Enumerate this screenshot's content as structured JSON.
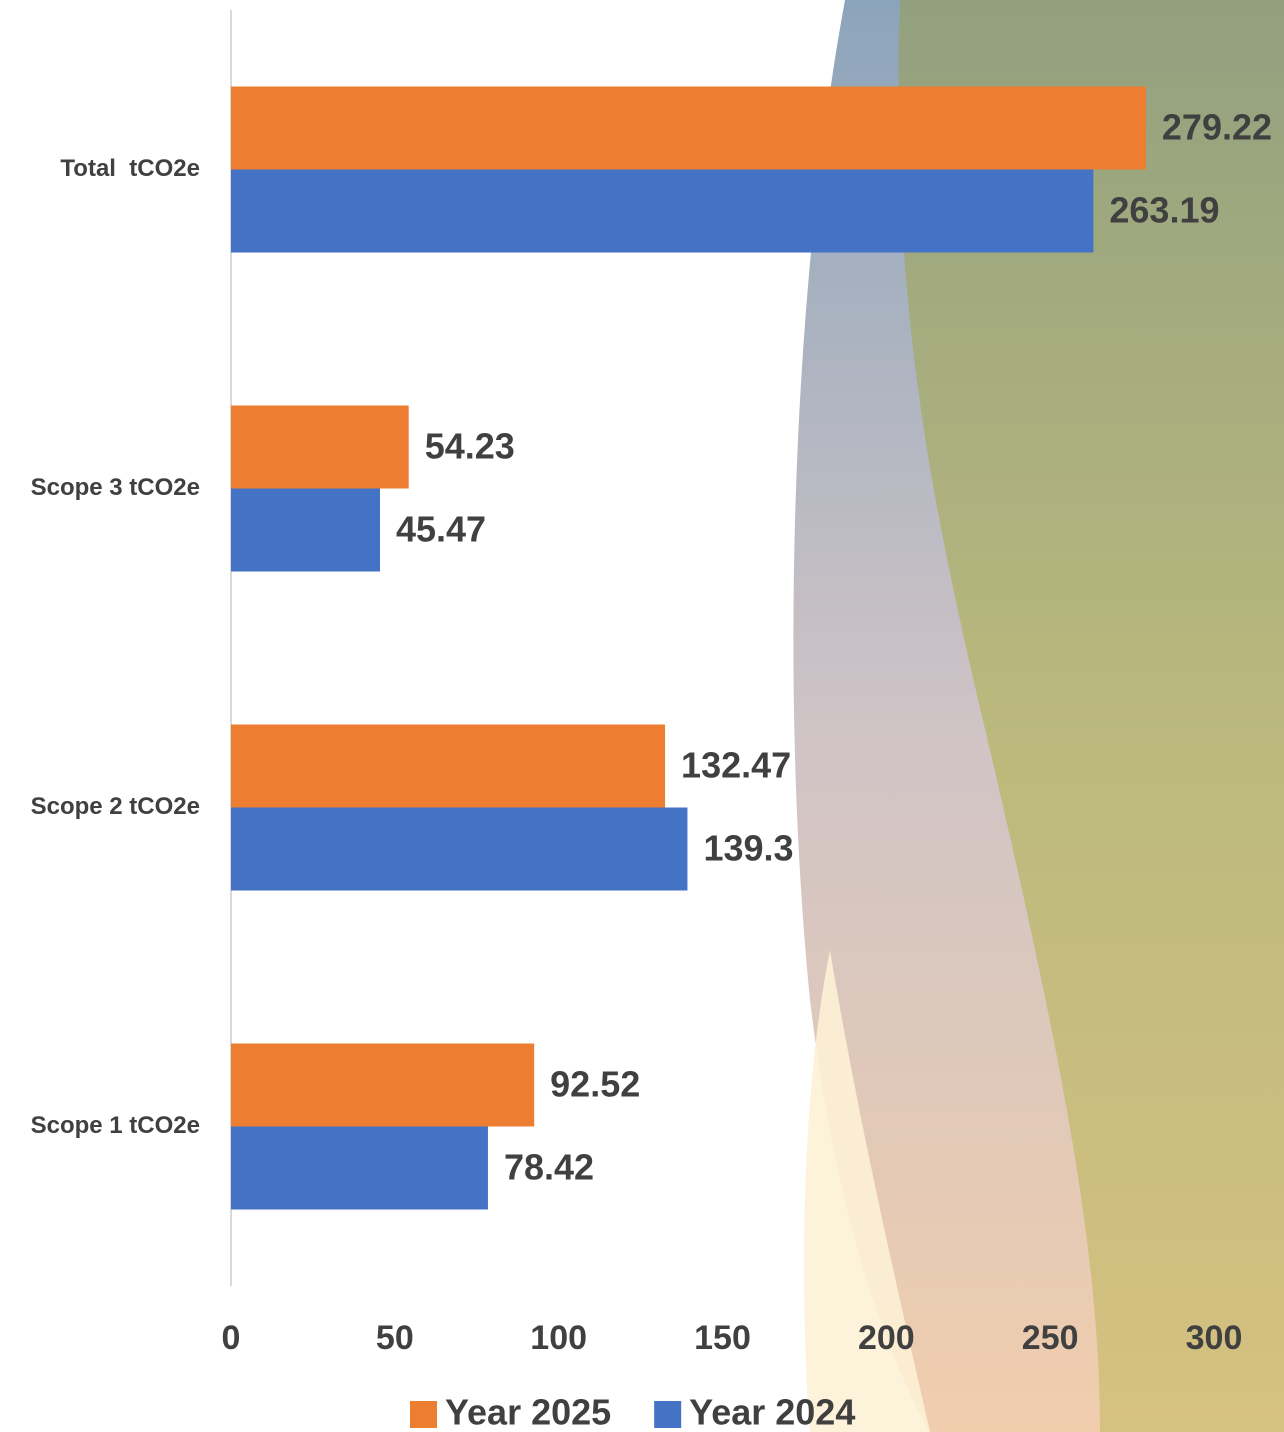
{
  "chart_data": {
    "type": "bar",
    "orientation": "horizontal",
    "categories": [
      "Total  tCO2e",
      "Scope 3 tCO2e",
      "Scope 2 tCO2e",
      "Scope 1 tCO2e"
    ],
    "series": [
      {
        "name": "Year 2025",
        "color": "#ed7d31",
        "values": [
          279.22,
          54.23,
          132.47,
          92.52
        ]
      },
      {
        "name": "Year 2024",
        "color": "#4472c4",
        "values": [
          263.19,
          45.47,
          139.3,
          78.42
        ]
      }
    ],
    "xlim": [
      0,
      300
    ],
    "xticks": [
      0,
      50,
      100,
      150,
      200,
      250,
      300
    ],
    "grid": false,
    "legend": "bottom"
  }
}
